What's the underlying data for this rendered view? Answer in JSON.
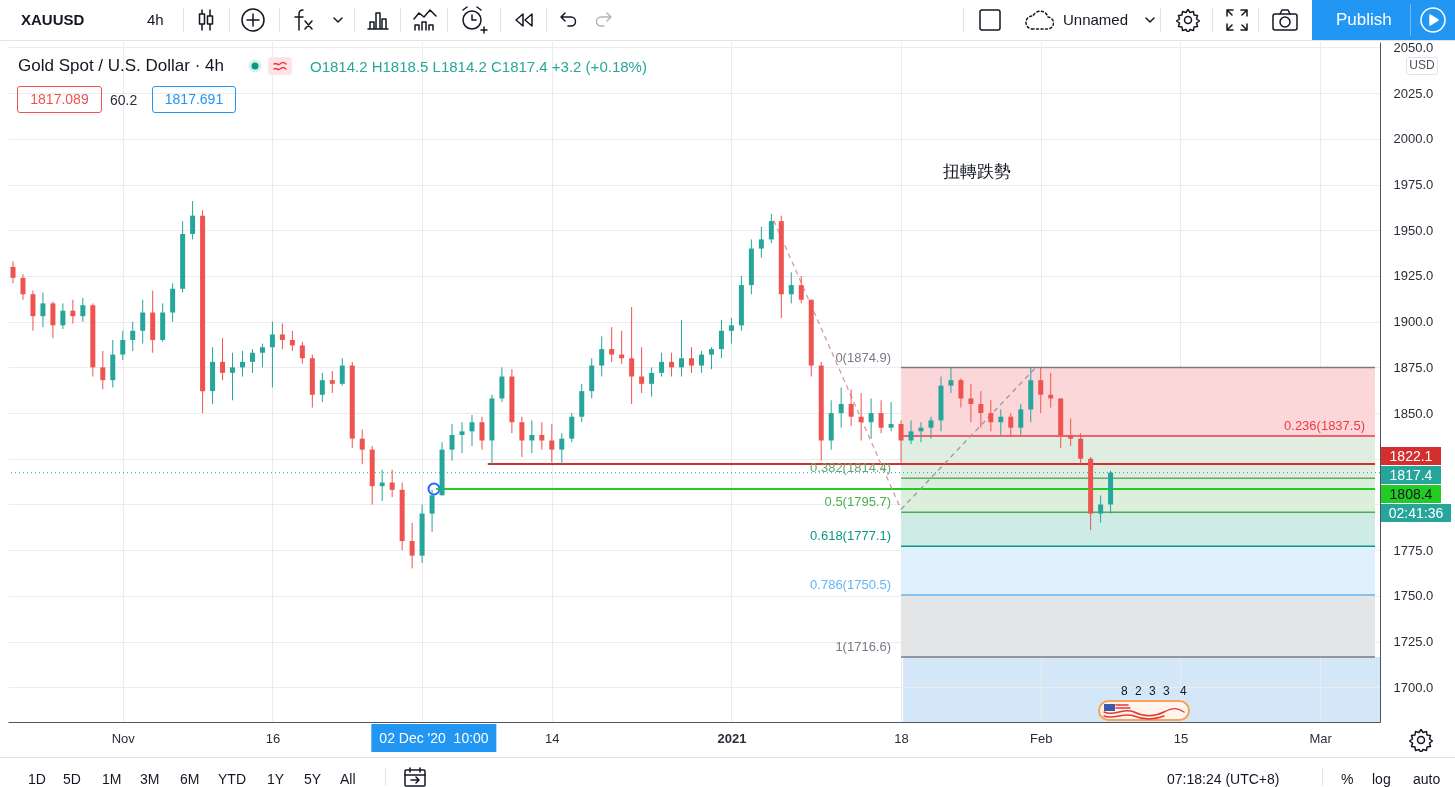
{
  "chart_data": {
    "type": "candlestick",
    "title": "Gold Spot / U.S. Dollar · 4h",
    "subtitle": "O1814.2 H1818.5 L1814.2 C1817.4 +3.2 (+0.18%)",
    "x": [
      "2020-10-21",
      "2020-10-22",
      "2020-10-23",
      "2020-10-24",
      "2020-10-25",
      "2020-10-26",
      "2020-10-27",
      "2020-10-28",
      "2020-10-29",
      "2020-10-30",
      "2020-10-31",
      "2020-11-01",
      "2020-11-02",
      "2020-11-03",
      "2020-11-04",
      "2020-11-05",
      "2020-11-06",
      "2020-11-07",
      "2020-11-08",
      "2020-11-09",
      "2020-11-10",
      "2020-11-11",
      "2020-11-12",
      "2020-11-13",
      "2020-11-14",
      "2020-11-15",
      "2020-11-16",
      "2020-11-17",
      "2020-11-18",
      "2020-11-19",
      "2020-11-20",
      "2020-11-21",
      "2020-11-22",
      "2020-11-23",
      "2020-11-24",
      "2020-11-25",
      "2020-11-26",
      "2020-11-27",
      "2020-11-28",
      "2020-11-29",
      "2020-11-30",
      "2020-12-01",
      "2020-12-02",
      "2020-12-03",
      "2020-12-04",
      "2020-12-05",
      "2020-12-06",
      "2020-12-07",
      "2020-12-08",
      "2020-12-09",
      "2020-12-10",
      "2020-12-11",
      "2020-12-12",
      "2020-12-13",
      "2020-12-14",
      "2020-12-15",
      "2020-12-16",
      "2020-12-17",
      "2020-12-18",
      "2020-12-19",
      "2020-12-20",
      "2020-12-21",
      "2020-12-22",
      "2020-12-23",
      "2020-12-24",
      "2020-12-25",
      "2020-12-26",
      "2020-12-27",
      "2020-12-28",
      "2020-12-29",
      "2020-12-30",
      "2020-12-31",
      "2021-01-01",
      "2021-01-02",
      "2021-01-03",
      "2021-01-04",
      "2021-01-05",
      "2021-01-06",
      "2021-01-07",
      "2021-01-08",
      "2021-01-09",
      "2021-01-10",
      "2021-01-11",
      "2021-01-12",
      "2021-01-13",
      "2021-01-14",
      "2021-01-15",
      "2021-01-16",
      "2021-01-17",
      "2021-01-18",
      "2021-01-19",
      "2021-01-20",
      "2021-01-21",
      "2021-01-22",
      "2021-01-23",
      "2021-01-24",
      "2021-01-25",
      "2021-01-26",
      "2021-01-27",
      "2021-01-28",
      "2021-01-29",
      "2021-01-30",
      "2021-01-31",
      "2021-02-01",
      "2021-02-02",
      "2021-02-03",
      "2021-02-04",
      "2021-02-05",
      "2021-02-06",
      "2021-02-07",
      "2021-02-08"
    ],
    "ohlc": [
      [
        1930,
        1933,
        1921,
        1924
      ],
      [
        1924,
        1926,
        1912,
        1915
      ],
      [
        1915,
        1917,
        1895,
        1903
      ],
      [
        1903,
        1916,
        1897,
        1910
      ],
      [
        1910,
        1911,
        1891,
        1898
      ],
      [
        1898,
        1910,
        1896,
        1906
      ],
      [
        1906,
        1912,
        1899,
        1903
      ],
      [
        1903,
        1913,
        1900,
        1909
      ],
      [
        1909,
        1910,
        1870,
        1875
      ],
      [
        1875,
        1884,
        1863,
        1868
      ],
      [
        1868,
        1890,
        1864,
        1882
      ],
      [
        1882,
        1895,
        1879,
        1890
      ],
      [
        1890,
        1900,
        1884,
        1895
      ],
      [
        1895,
        1912,
        1888,
        1905
      ],
      [
        1905,
        1917,
        1883,
        1890
      ],
      [
        1890,
        1910,
        1889,
        1905
      ],
      [
        1905,
        1921,
        1900,
        1918
      ],
      [
        1918,
        1955,
        1916,
        1948
      ],
      [
        1948,
        1966,
        1945,
        1958
      ],
      [
        1958,
        1961,
        1850,
        1862
      ],
      [
        1862,
        1886,
        1855,
        1878
      ],
      [
        1878,
        1891,
        1868,
        1872
      ],
      [
        1872,
        1883,
        1857,
        1875
      ],
      [
        1875,
        1884,
        1870,
        1878
      ],
      [
        1878,
        1885,
        1872,
        1883
      ],
      [
        1883,
        1888,
        1875,
        1886
      ],
      [
        1886,
        1900,
        1864,
        1893
      ],
      [
        1893,
        1899,
        1885,
        1890
      ],
      [
        1890,
        1895,
        1884,
        1887
      ],
      [
        1887,
        1889,
        1877,
        1880
      ],
      [
        1880,
        1882,
        1853,
        1860
      ],
      [
        1860,
        1872,
        1856,
        1868
      ],
      [
        1868,
        1873,
        1861,
        1866
      ],
      [
        1866,
        1880,
        1865,
        1876
      ],
      [
        1876,
        1878,
        1831,
        1836
      ],
      [
        1836,
        1841,
        1822,
        1830
      ],
      [
        1830,
        1832,
        1800,
        1810
      ],
      [
        1810,
        1819,
        1802,
        1812
      ],
      [
        1812,
        1819,
        1804,
        1808
      ],
      [
        1808,
        1812,
        1775,
        1780
      ],
      [
        1780,
        1790,
        1765,
        1772
      ],
      [
        1772,
        1800,
        1768,
        1795
      ],
      [
        1795,
        1808,
        1785,
        1805
      ],
      [
        1805,
        1834,
        1805,
        1830
      ],
      [
        1830,
        1844,
        1824,
        1838
      ],
      [
        1838,
        1845,
        1828,
        1840
      ],
      [
        1840,
        1849,
        1832,
        1845
      ],
      [
        1845,
        1848,
        1830,
        1835
      ],
      [
        1835,
        1860,
        1822,
        1858
      ],
      [
        1858,
        1875,
        1856,
        1870
      ],
      [
        1870,
        1874,
        1839,
        1845
      ],
      [
        1845,
        1848,
        1826,
        1835
      ],
      [
        1835,
        1846,
        1828,
        1838
      ],
      [
        1838,
        1845,
        1830,
        1835
      ],
      [
        1835,
        1844,
        1823,
        1830
      ],
      [
        1830,
        1839,
        1822,
        1836
      ],
      [
        1836,
        1850,
        1834,
        1848
      ],
      [
        1848,
        1866,
        1845,
        1862
      ],
      [
        1862,
        1880,
        1858,
        1876
      ],
      [
        1876,
        1892,
        1870,
        1885
      ],
      [
        1885,
        1897,
        1878,
        1882
      ],
      [
        1882,
        1895,
        1877,
        1880
      ],
      [
        1880,
        1908,
        1855,
        1870
      ],
      [
        1870,
        1886,
        1861,
        1866
      ],
      [
        1866,
        1875,
        1859,
        1872
      ],
      [
        1872,
        1883,
        1870,
        1878
      ],
      [
        1878,
        1883,
        1870,
        1875
      ],
      [
        1875,
        1901,
        1870,
        1880
      ],
      [
        1880,
        1886,
        1872,
        1876
      ],
      [
        1876,
        1884,
        1872,
        1882
      ],
      [
        1882,
        1886,
        1874,
        1885
      ],
      [
        1885,
        1901,
        1880,
        1895
      ],
      [
        1895,
        1902,
        1888,
        1898
      ],
      [
        1898,
        1925,
        1895,
        1920
      ],
      [
        1920,
        1945,
        1915,
        1940
      ],
      [
        1940,
        1952,
        1935,
        1945
      ],
      [
        1945,
        1959,
        1943,
        1955
      ],
      [
        1955,
        1958,
        1902,
        1915
      ],
      [
        1915,
        1927,
        1910,
        1920
      ],
      [
        1920,
        1925,
        1910,
        1912
      ],
      [
        1912,
        1912,
        1870,
        1876
      ],
      [
        1876,
        1878,
        1824,
        1835
      ],
      [
        1835,
        1857,
        1830,
        1850
      ],
      [
        1850,
        1864,
        1842,
        1855
      ],
      [
        1855,
        1863,
        1843,
        1848
      ],
      [
        1848,
        1861,
        1835,
        1845
      ],
      [
        1845,
        1858,
        1836,
        1850
      ],
      [
        1850,
        1857,
        1839,
        1842
      ],
      [
        1842,
        1856,
        1840,
        1844
      ],
      [
        1844,
        1846,
        1823,
        1835
      ],
      [
        1835,
        1846,
        1833,
        1840
      ],
      [
        1840,
        1845,
        1834,
        1842
      ],
      [
        1842,
        1848,
        1836,
        1846
      ],
      [
        1846,
        1870,
        1840,
        1865
      ],
      [
        1865,
        1875,
        1861,
        1868
      ],
      [
        1868,
        1869,
        1853,
        1858
      ],
      [
        1858,
        1866,
        1845,
        1855
      ],
      [
        1855,
        1862,
        1842,
        1850
      ],
      [
        1850,
        1857,
        1840,
        1845
      ],
      [
        1845,
        1852,
        1838,
        1848
      ],
      [
        1848,
        1850,
        1837,
        1842
      ],
      [
        1842,
        1855,
        1838,
        1852
      ],
      [
        1852,
        1875,
        1845,
        1868
      ],
      [
        1868,
        1875,
        1850,
        1860
      ],
      [
        1860,
        1872,
        1853,
        1858
      ],
      [
        1858,
        1858,
        1831,
        1838
      ],
      [
        1838,
        1847,
        1832,
        1836
      ],
      [
        1836,
        1839,
        1822,
        1825
      ],
      [
        1825,
        1826,
        1786,
        1795
      ],
      [
        1795,
        1805,
        1790,
        1800
      ],
      [
        1800,
        1818.5,
        1795,
        1817.4
      ]
    ],
    "colors": [
      "#ef5350",
      "#ef5350",
      "#ef5350",
      "#26a69a",
      "#ef5350",
      "#26a69a",
      "#ef5350",
      "#26a69a",
      "#ef5350",
      "#ef5350",
      "#26a69a",
      "#26a69a",
      "#26a69a",
      "#26a69a",
      "#ef5350",
      "#26a69a",
      "#26a69a",
      "#26a69a",
      "#26a69a",
      "#ef5350",
      "#26a69a",
      "#ef5350",
      "#26a69a",
      "#26a69a",
      "#26a69a",
      "#26a69a",
      "#26a69a",
      "#ef5350",
      "#ef5350",
      "#ef5350",
      "#ef5350",
      "#26a69a",
      "#ef5350",
      "#26a69a",
      "#ef5350",
      "#ef5350",
      "#ef5350",
      "#26a69a",
      "#ef5350",
      "#ef5350",
      "#ef5350",
      "#26a69a",
      "#26a69a",
      "#26a69a",
      "#26a69a",
      "#26a69a",
      "#26a69a",
      "#ef5350",
      "#26a69a",
      "#26a69a",
      "#ef5350",
      "#ef5350",
      "#26a69a",
      "#ef5350",
      "#ef5350",
      "#26a69a",
      "#26a69a",
      "#26a69a",
      "#26a69a",
      "#26a69a",
      "#ef5350",
      "#ef5350",
      "#ef5350",
      "#ef5350",
      "#26a69a",
      "#26a69a",
      "#ef5350",
      "#26a69a",
      "#ef5350",
      "#26a69a",
      "#26a69a",
      "#26a69a",
      "#26a69a",
      "#26a69a",
      "#26a69a",
      "#26a69a",
      "#26a69a",
      "#ef5350",
      "#26a69a",
      "#ef5350",
      "#ef5350",
      "#ef5350",
      "#26a69a",
      "#26a69a",
      "#ef5350",
      "#ef5350",
      "#26a69a",
      "#ef5350",
      "#26a69a",
      "#ef5350",
      "#26a69a",
      "#26a69a",
      "#26a69a",
      "#26a69a",
      "#26a69a",
      "#ef5350",
      "#ef5350",
      "#ef5350",
      "#ef5350",
      "#26a69a",
      "#ef5350",
      "#26a69a",
      "#26a69a",
      "#ef5350",
      "#ef5350",
      "#ef5350",
      "#ef5350",
      "#ef5350",
      "#ef5350",
      "#26a69a",
      "#26a69a"
    ],
    "xlim": [
      "2020-10-21",
      "2021-03-06T12:00"
    ],
    "xticks": [
      {
        "value": "2020-11-01",
        "label": "Nov"
      },
      {
        "value": "2020-11-16",
        "label": "16"
      },
      {
        "value": "2020-12-01",
        "label": null
      },
      {
        "value": "2020-12-14",
        "label": "14"
      },
      {
        "value": "2021-01-01",
        "label": "2021"
      },
      {
        "value": "2021-01-18",
        "label": "18"
      },
      {
        "value": "2021-02-01",
        "label": "Feb"
      },
      {
        "value": "2021-02-15",
        "label": "15"
      },
      {
        "value": "2021-03-01",
        "label": "Mar"
      }
    ],
    "ylim": [
      1681,
      2053
    ],
    "yticks": [
      {
        "value": 1700,
        "label": "1700.0"
      },
      {
        "value": 1725,
        "label": "1725.0"
      },
      {
        "value": 1750,
        "label": "1750.0"
      },
      {
        "value": 1775,
        "label": "1775.0"
      },
      {
        "value": 1800,
        "label": null
      },
      {
        "value": 1825,
        "label": null
      },
      {
        "value": 1850,
        "label": "1850.0"
      },
      {
        "value": 1875,
        "label": "1875.0"
      },
      {
        "value": 1900,
        "label": "1900.0"
      },
      {
        "value": 1925,
        "label": "1925.0"
      },
      {
        "value": 1950,
        "label": "1950.0"
      },
      {
        "value": 1975,
        "label": "1975.0"
      },
      {
        "value": 2000,
        "label": "2000.0"
      },
      {
        "value": 2025,
        "label": "2025.0"
      },
      {
        "value": 2050,
        "label": "2050.0"
      }
    ],
    "grid": true,
    "series": [
      {
        "type": "line",
        "name": "0(1874.9)",
        "color": "#787b86",
        "x": [
          "2021-01-18",
          "2021-03-06T12:00"
        ],
        "values": [
          1874.9,
          1874.9
        ]
      },
      {
        "type": "line",
        "name": "0.236(1837.5)",
        "color": "#f23645",
        "x": [
          "2021-01-18",
          "2021-03-06T12:00"
        ],
        "values": [
          1837.5,
          1837.5
        ],
        "upper": [
          1874.9,
          1874.9
        ],
        "lower": [
          1837.5,
          1837.5
        ]
      },
      {
        "type": "line",
        "name": "0.382(1814.4)",
        "color": "#66a86a",
        "x": [
          "2021-01-18",
          "2021-03-06T12:00"
        ],
        "values": [
          1814.4,
          1814.4
        ],
        "upper": [
          1837.5,
          1837.5
        ],
        "lower": [
          1814.4,
          1814.4
        ]
      },
      {
        "type": "line",
        "name": "0.5(1795.7)",
        "color": "#4caf50",
        "x": [
          "2021-01-18",
          "2021-03-06T12:00"
        ],
        "values": [
          1795.7,
          1795.7
        ],
        "upper": [
          1814.4,
          1814.4
        ],
        "lower": [
          1795.7,
          1795.7
        ]
      },
      {
        "type": "line",
        "name": "0.618(1777.1)",
        "color": "#089981",
        "x": [
          "2021-01-18",
          "2021-03-06T12:00"
        ],
        "values": [
          1777.1,
          1777.1
        ],
        "upper": [
          1795.7,
          1795.7
        ],
        "lower": [
          1777.1,
          1777.1
        ]
      },
      {
        "type": "line",
        "name": "0.786(1750.5)",
        "color": "#64b5f6",
        "x": [
          "2021-01-18",
          "2021-03-06T12:00"
        ],
        "values": [
          1750.5,
          1750.5
        ],
        "upper": [
          1777.1,
          1777.1
        ],
        "lower": [
          1750.5,
          1750.5
        ]
      },
      {
        "type": "line",
        "name": "1(1716.6)",
        "color": "#787b86",
        "x": [
          "2021-01-18",
          "2021-03-06T12:00"
        ],
        "values": [
          1716.6,
          1716.6
        ],
        "upper": [
          1750.5,
          1750.5
        ],
        "lower": [
          1716.6,
          1716.6
        ]
      },
      {
        "type": "line",
        "color": "#d32f2f",
        "x": [
          "2020-12-07T14:00",
          "2021-03-06T12:00"
        ],
        "values": [
          1822.1,
          1822.1
        ],
        "value_labels": [
          null,
          "1822.1"
        ]
      },
      {
        "type": "line",
        "color": "#22cc22",
        "x": [
          "2020-12-02T10:00",
          "2021-03-06T12:00"
        ],
        "values": [
          1808.4,
          1808.4
        ],
        "value_labels": [
          null,
          "1808.4"
        ]
      },
      {
        "type": "line",
        "color": "#d69ba3",
        "line_style": "dashed",
        "x": [
          "2021-01-05T06:00",
          "2021-01-18"
        ],
        "values": [
          1955.3,
          1797.3
        ]
      },
      {
        "type": "line",
        "color": "#9598a1",
        "line_style": "dashed",
        "x": [
          "2021-01-18",
          "2021-01-31T12:00"
        ],
        "values": [
          1797.3,
          1874.9
        ]
      }
    ],
    "ref_lines": [
      {
        "axis": "y",
        "value": 1817.4,
        "label": "1817.4",
        "color": "#26a69a",
        "line_style": "dotted"
      }
    ],
    "annotations": [
      "XAUUSD",
      "4h",
      "Unnamed",
      "Publish",
      "1817.089",
      "60.2",
      "1817.691",
      "USD",
      "扭轉跌勢",
      "02:41:36",
      "1D",
      "5D",
      "1M",
      "3M",
      "6M",
      "YTD",
      "1Y",
      "5Y",
      "All",
      "07:18:24 (UTC+8)",
      "%",
      "log",
      "auto",
      "8",
      "2",
      "3",
      "3",
      "4",
      "02 Dec '20  10:00"
    ]
  }
}
